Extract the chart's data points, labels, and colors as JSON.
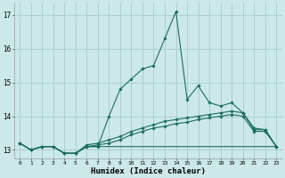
{
  "xlabel": "Humidex (Indice chaleur)",
  "background_color": "#cce8e8",
  "grid_color": "#aad0d0",
  "line_color": "#1a6e5e",
  "xlim": [
    -0.5,
    23.5
  ],
  "ylim": [
    12.75,
    17.35
  ],
  "yticks": [
    13,
    14,
    15,
    16,
    17
  ],
  "xticks": [
    0,
    1,
    2,
    3,
    4,
    5,
    6,
    7,
    8,
    9,
    10,
    11,
    12,
    13,
    14,
    15,
    16,
    17,
    18,
    19,
    20,
    21,
    22,
    23
  ],
  "series1": [
    13.2,
    13.0,
    13.1,
    13.1,
    12.9,
    12.9,
    13.1,
    13.1,
    14.0,
    14.8,
    15.1,
    15.4,
    15.5,
    16.3,
    17.1,
    14.5,
    14.9,
    14.4,
    14.3,
    14.4,
    14.1,
    13.6,
    13.6,
    13.1
  ],
  "series2": [
    13.2,
    13.0,
    13.1,
    13.1,
    12.9,
    12.9,
    13.15,
    13.2,
    13.3,
    13.4,
    13.55,
    13.65,
    13.75,
    13.85,
    13.9,
    13.95,
    14.0,
    14.05,
    14.1,
    14.15,
    14.1,
    13.65,
    13.6,
    13.1
  ],
  "series3": [
    13.2,
    13.0,
    13.1,
    13.1,
    12.9,
    12.9,
    13.1,
    13.15,
    13.2,
    13.3,
    13.45,
    13.55,
    13.65,
    13.7,
    13.78,
    13.82,
    13.9,
    13.95,
    14.0,
    14.05,
    14.0,
    13.55,
    13.55,
    13.1
  ],
  "series4": [
    13.2,
    13.0,
    13.1,
    13.1,
    12.9,
    12.9,
    13.1,
    13.1,
    13.1,
    13.1,
    13.1,
    13.1,
    13.1,
    13.1,
    13.1,
    13.1,
    13.1,
    13.1,
    13.1,
    13.1,
    13.1,
    13.1,
    13.1,
    13.1
  ]
}
